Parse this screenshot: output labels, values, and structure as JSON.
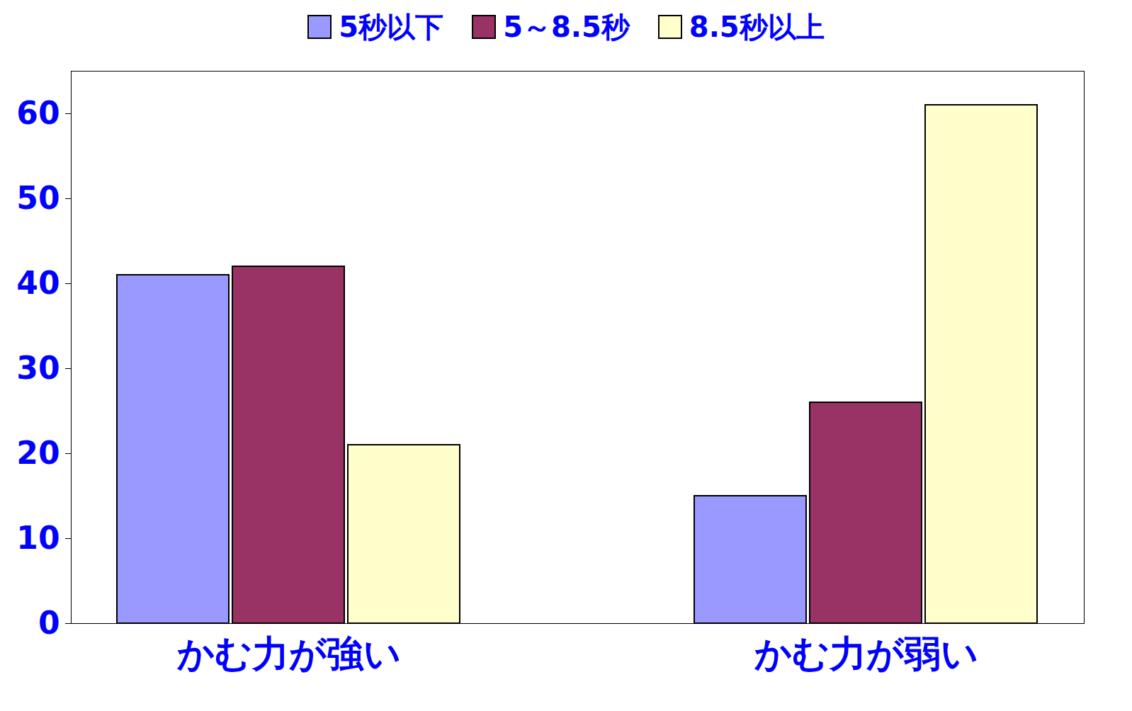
{
  "chart_data": {
    "type": "bar",
    "categories": [
      "かむ力が強い",
      "かむ力が弱い"
    ],
    "series": [
      {
        "name": "5秒以下",
        "color": "#9999ff",
        "values": [
          41,
          15
        ]
      },
      {
        "name": "5～8.5秒",
        "color": "#993366",
        "values": [
          42,
          26
        ]
      },
      {
        "name": "8.5秒以上",
        "color": "#ffffcc",
        "values": [
          21,
          61
        ]
      }
    ],
    "ylim": [
      0,
      65
    ],
    "yticks": [
      0,
      10,
      20,
      30,
      40,
      50,
      60
    ],
    "legend": "top"
  }
}
